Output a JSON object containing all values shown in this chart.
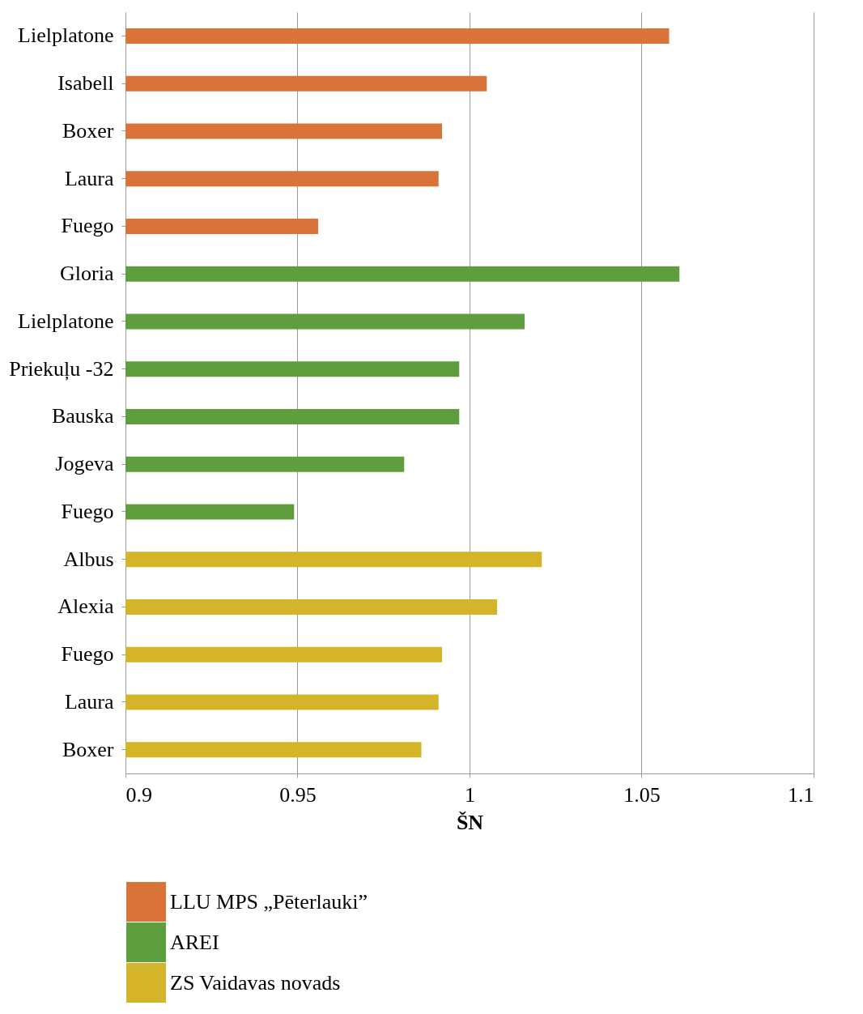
{
  "chart_data": {
    "type": "bar",
    "orientation": "horizontal",
    "xlabel": "ŠN",
    "categories": [
      "Lielplatone",
      "Isabell",
      "Boxer",
      "Laura",
      "Fuego",
      "Gloria",
      "Lielplatone",
      "Priekuļu -32",
      "Bauska",
      "Jogeva",
      "Fuego",
      "Albus",
      "Alexia",
      "Fuego",
      "Laura",
      "Boxer"
    ],
    "series": [
      {
        "name": "LLU MPS „Pēterlauki”",
        "color": "#d9733a",
        "values": [
          1.058,
          1.005,
          0.992,
          0.991,
          0.956,
          null,
          null,
          null,
          null,
          null,
          null,
          null,
          null,
          null,
          null,
          null
        ]
      },
      {
        "name": "AREI",
        "color": "#5f9e3f",
        "values": [
          null,
          null,
          null,
          null,
          null,
          1.061,
          1.016,
          0.997,
          0.997,
          0.981,
          0.949,
          null,
          null,
          null,
          null,
          null
        ]
      },
      {
        "name": "ZS Vaidavas novads",
        "color": "#d4b52a",
        "values": [
          null,
          null,
          null,
          null,
          null,
          null,
          null,
          null,
          null,
          null,
          null,
          1.021,
          1.008,
          0.992,
          0.991,
          0.986
        ]
      }
    ],
    "xlim": [
      0.9,
      1.1
    ],
    "xticks": [
      0.9,
      0.95,
      1,
      1.05,
      1.1
    ],
    "grid": "x",
    "legend": "bottom"
  }
}
